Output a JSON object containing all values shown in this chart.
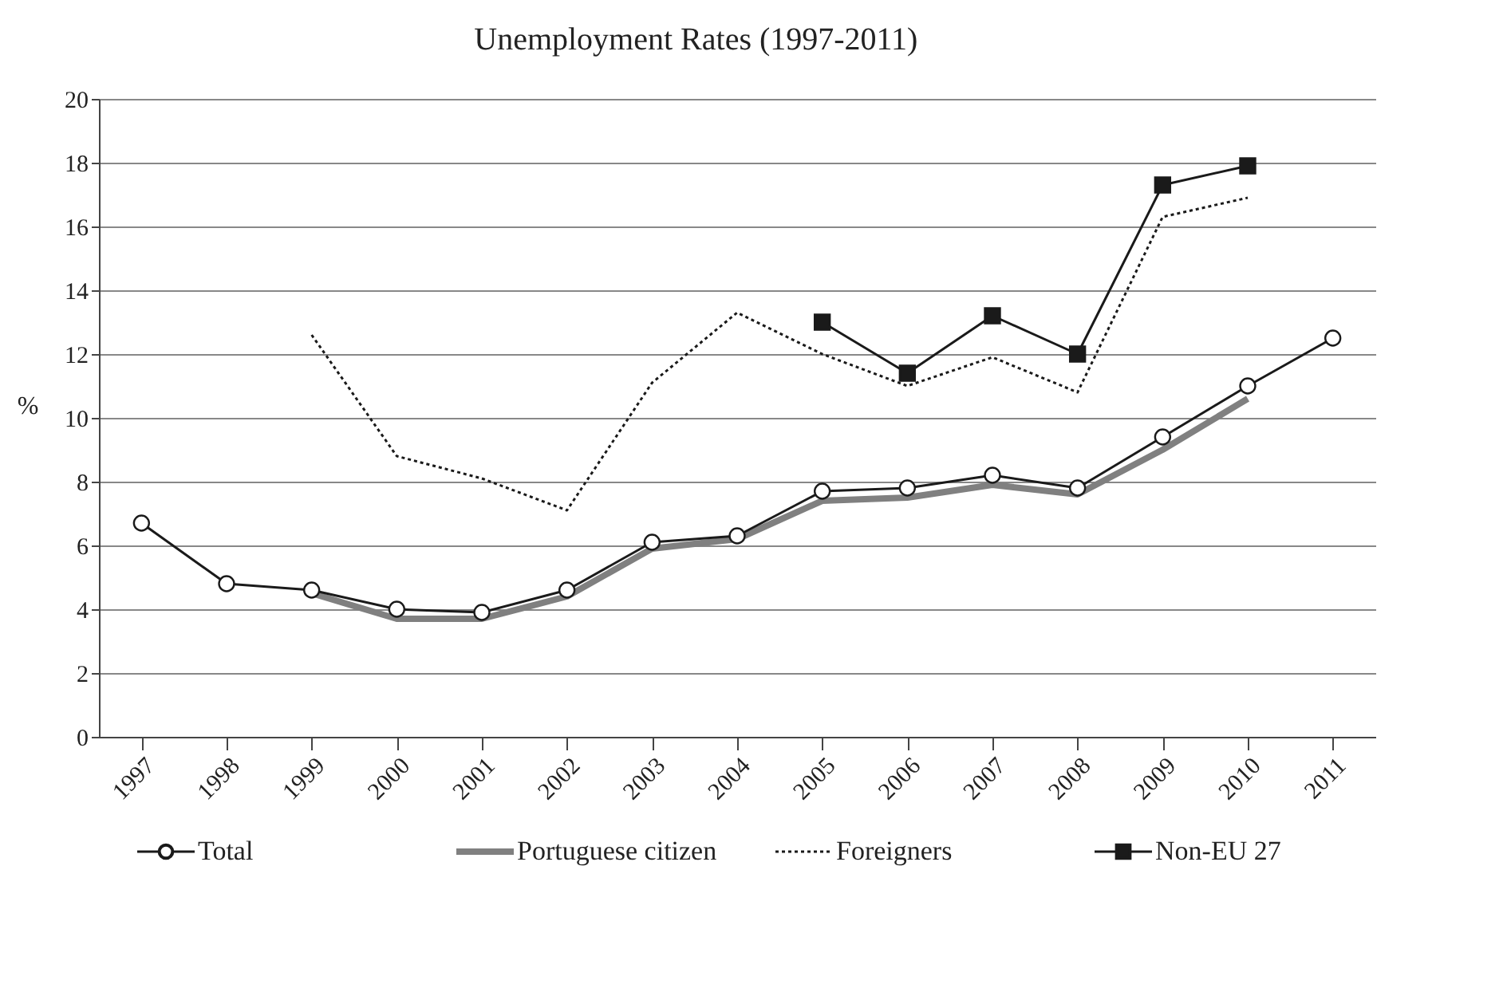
{
  "chart_data": {
    "type": "line",
    "title": "Unemployment Rates (1997-2011)",
    "ylabel": "%",
    "categories": [
      "1997",
      "1998",
      "1999",
      "2000",
      "2001",
      "2002",
      "2003",
      "2004",
      "2005",
      "2006",
      "2007",
      "2008",
      "2009",
      "2010",
      "2011"
    ],
    "ylim": [
      0,
      20
    ],
    "yticks": [
      0,
      2,
      4,
      6,
      8,
      10,
      12,
      14,
      16,
      18,
      20
    ],
    "grid": "y",
    "legend": "bottom",
    "series": [
      {
        "name": "Total",
        "color": "#1a1a1a",
        "marker": "circle",
        "line_style": "solid",
        "values": [
          6.7,
          4.8,
          4.6,
          4.0,
          3.9,
          4.6,
          6.1,
          6.3,
          7.7,
          7.8,
          8.2,
          7.8,
          9.4,
          11.0,
          12.5
        ]
      },
      {
        "name": "Portuguese citizen",
        "color": "#808080",
        "marker": "none",
        "line_style": "solid",
        "values": [
          null,
          null,
          4.5,
          3.7,
          3.7,
          4.4,
          5.9,
          6.2,
          7.4,
          7.5,
          7.9,
          7.6,
          9.0,
          10.6,
          null
        ]
      },
      {
        "name": "Foreigners",
        "color": "#1a1a1a",
        "marker": "none",
        "line_style": "dotted",
        "values": [
          null,
          null,
          12.6,
          8.8,
          8.1,
          7.1,
          11.1,
          13.3,
          12.0,
          11.0,
          11.9,
          10.8,
          16.3,
          16.9,
          null
        ]
      },
      {
        "name": "Non-EU 27",
        "color": "#1a1a1a",
        "marker": "square",
        "line_style": "solid",
        "values": [
          null,
          null,
          null,
          null,
          null,
          null,
          null,
          null,
          13.0,
          11.4,
          13.2,
          12.0,
          17.3,
          17.9,
          null
        ]
      }
    ]
  }
}
